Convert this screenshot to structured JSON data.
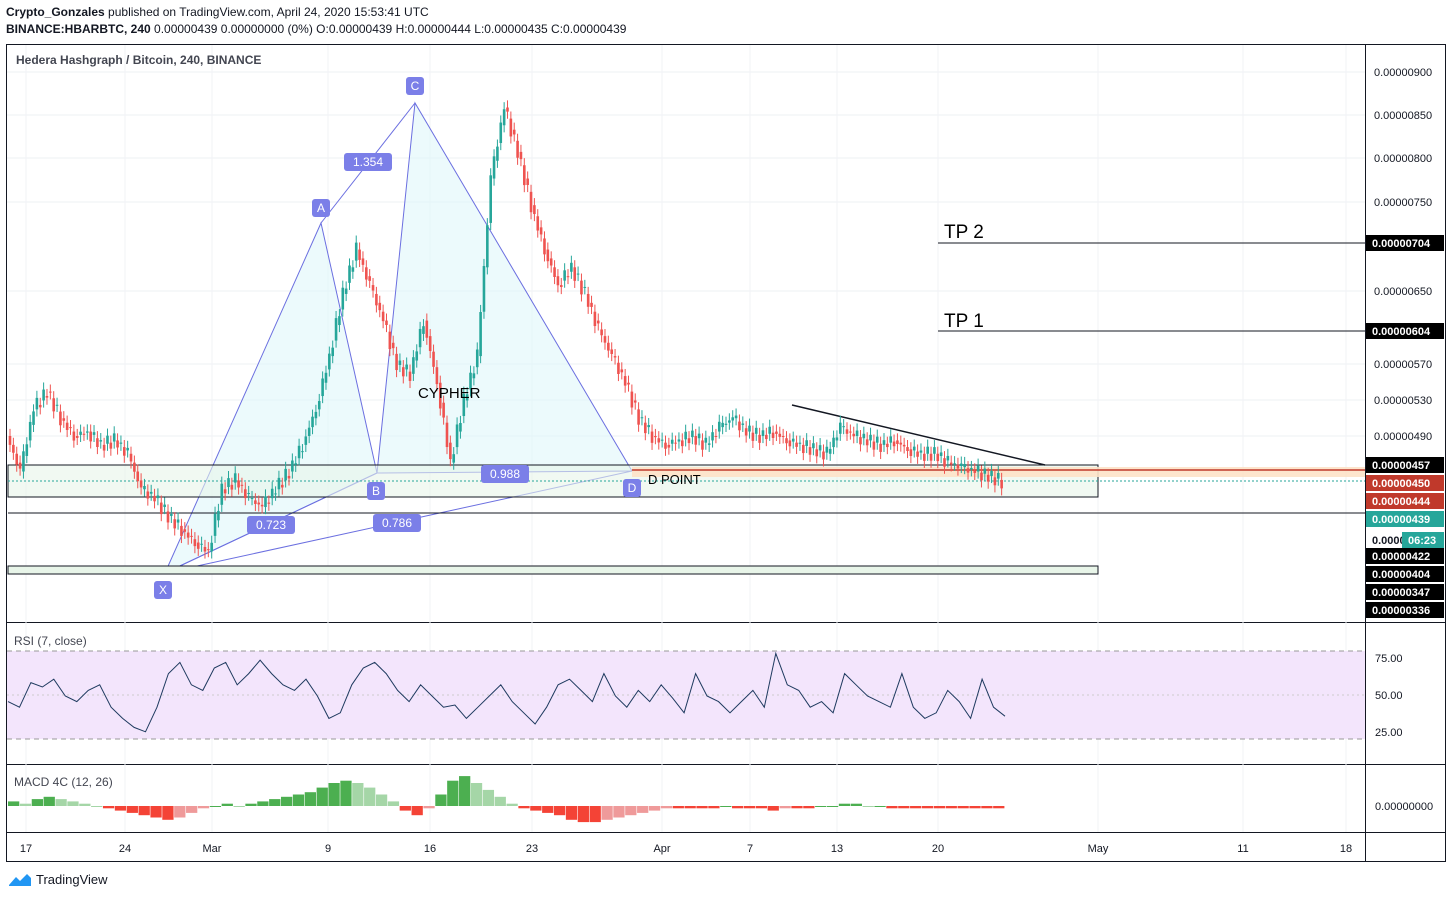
{
  "header": {
    "author": "Crypto_Gonzales",
    "published": "published on TradingView.com, April 24, 2020 15:53:41 UTC",
    "symbol": "BINANCE:HBARBTC, 240",
    "ohlc": "0.00000439 0.00000000 (0%) O:0.00000439 H:0.00000444 L:0.00000435 C:0.00000439"
  },
  "footer": {
    "brand": "TradingView",
    "logo_icon": "tradingview-logo-icon"
  },
  "chart_data": [
    {
      "type": "candlestick",
      "title": "Hedera Hashgraph / Bitcoin, 240, BINANCE",
      "x_ticks": [
        "17",
        "24",
        "Mar",
        "9",
        "16",
        "23",
        "Apr",
        "7",
        "13",
        "20",
        "May",
        "11",
        "18"
      ],
      "y_ticks": [
        "0.00000900",
        "0.00000850",
        "0.00000800",
        "0.00000750",
        "0.00000650",
        "0.00000570",
        "0.00000530",
        "0.00000490"
      ],
      "ylim": [
        3.3e-06,
        9.2e-06
      ],
      "price_tags": [
        {
          "label": "0.00000704",
          "bg": "#000000",
          "fg": "#ffffff"
        },
        {
          "label": "0.00000604",
          "bg": "#000000",
          "fg": "#ffffff"
        },
        {
          "label": "0.00000457",
          "bg": "#000000",
          "fg": "#ffffff"
        },
        {
          "label": "0.00000450",
          "bg": "#c0392b",
          "fg": "#ffffff"
        },
        {
          "label": "0.00000444",
          "bg": "#c0392b",
          "fg": "#ffffff"
        },
        {
          "label": "0.00000439",
          "bg": "#26a69a",
          "fg": "#ffffff"
        },
        {
          "label": "0.0000",
          "bg": "#ffffff",
          "fg": "#131722"
        },
        {
          "label": "06:23",
          "bg": "#26a69a",
          "fg": "#ffffff"
        },
        {
          "label": "0.00000422",
          "bg": "#000000",
          "fg": "#ffffff"
        },
        {
          "label": "0.00000404",
          "bg": "#000000",
          "fg": "#ffffff"
        },
        {
          "label": "0.00000347",
          "bg": "#000000",
          "fg": "#ffffff"
        },
        {
          "label": "0.00000336",
          "bg": "#000000",
          "fg": "#ffffff"
        }
      ],
      "price_series": [
        4.9,
        4.5,
        5.2,
        5.4,
        5.1,
        4.9,
        4.95,
        4.8,
        4.85,
        4.7,
        4.3,
        4.2,
        4.0,
        3.85,
        3.7,
        3.6,
        4.3,
        4.4,
        4.2,
        4.1,
        4.3,
        4.5,
        4.8,
        5.2,
        5.8,
        6.5,
        7.0,
        6.6,
        6.2,
        5.7,
        5.6,
        6.2,
        5.5,
        4.6,
        5.3,
        5.8,
        7.8,
        8.6,
        8.1,
        7.5,
        7.0,
        6.6,
        6.8,
        6.5,
        6.1,
        5.8,
        5.5,
        5.1,
        4.9,
        4.8,
        4.85,
        4.9,
        4.8,
        5.0,
        5.1,
        4.95,
        4.9,
        4.95,
        4.85,
        4.8,
        4.75,
        4.7,
        5.0,
        4.9,
        4.85,
        4.8,
        4.85,
        4.75,
        4.7,
        4.7,
        4.6,
        4.55,
        4.5,
        4.45,
        4.39
      ],
      "patterns": [
        {
          "label": "X"
        },
        {
          "label": "A"
        },
        {
          "label": "B"
        },
        {
          "label": "C"
        },
        {
          "label": "D"
        },
        {
          "label": "1.354"
        },
        {
          "label": "0.723"
        },
        {
          "label": "0.988"
        },
        {
          "label": "0.786"
        }
      ],
      "annotations": [
        "CYPHER",
        "D POINT",
        "TP 2",
        "TP 1"
      ]
    },
    {
      "type": "line",
      "title": "RSI (7, close)",
      "y_ticks": [
        "75.00",
        "50.00",
        "25.00"
      ],
      "ylim": [
        0,
        100
      ],
      "band": [
        22,
        80
      ],
      "values": [
        45,
        40,
        62,
        58,
        65,
        50,
        45,
        55,
        60,
        40,
        30,
        22,
        18,
        40,
        70,
        80,
        60,
        55,
        75,
        80,
        60,
        70,
        82,
        70,
        60,
        55,
        65,
        50,
        30,
        35,
        60,
        75,
        80,
        70,
        55,
        45,
        60,
        50,
        40,
        42,
        30,
        40,
        50,
        60,
        45,
        35,
        25,
        40,
        60,
        65,
        55,
        45,
        70,
        50,
        40,
        55,
        45,
        60,
        48,
        35,
        70,
        50,
        45,
        35,
        45,
        55,
        40,
        88,
        60,
        55,
        40,
        45,
        35,
        70,
        60,
        50,
        45,
        40,
        70,
        40,
        30,
        35,
        55,
        45,
        30,
        65,
        40,
        32
      ]
    },
    {
      "type": "bar",
      "title": "MACD 4C (12, 26)",
      "y_ticks": [
        "0.00000000"
      ],
      "values": [
        2,
        1,
        3,
        4,
        3,
        2,
        1,
        0,
        -1,
        -2,
        -3,
        -4,
        -5,
        -6,
        -5,
        -3,
        -1,
        0,
        1,
        0,
        1,
        2,
        3,
        4,
        5,
        6,
        8,
        10,
        11,
        10,
        8,
        5,
        2,
        -2,
        -4,
        -1,
        5,
        11,
        13,
        10,
        7,
        4,
        1,
        -1,
        -2,
        -3,
        -4,
        -6,
        -7,
        -7,
        -6,
        -5,
        -4,
        -3,
        -2,
        -1,
        -1,
        -1,
        -1,
        -1,
        0,
        -1,
        -1,
        -1,
        -2,
        -1,
        -1,
        -1,
        0,
        0,
        1,
        1,
        0,
        0,
        -1,
        -1,
        -1,
        -1,
        -1,
        -1,
        -1,
        -1,
        -1,
        -1
      ]
    }
  ]
}
